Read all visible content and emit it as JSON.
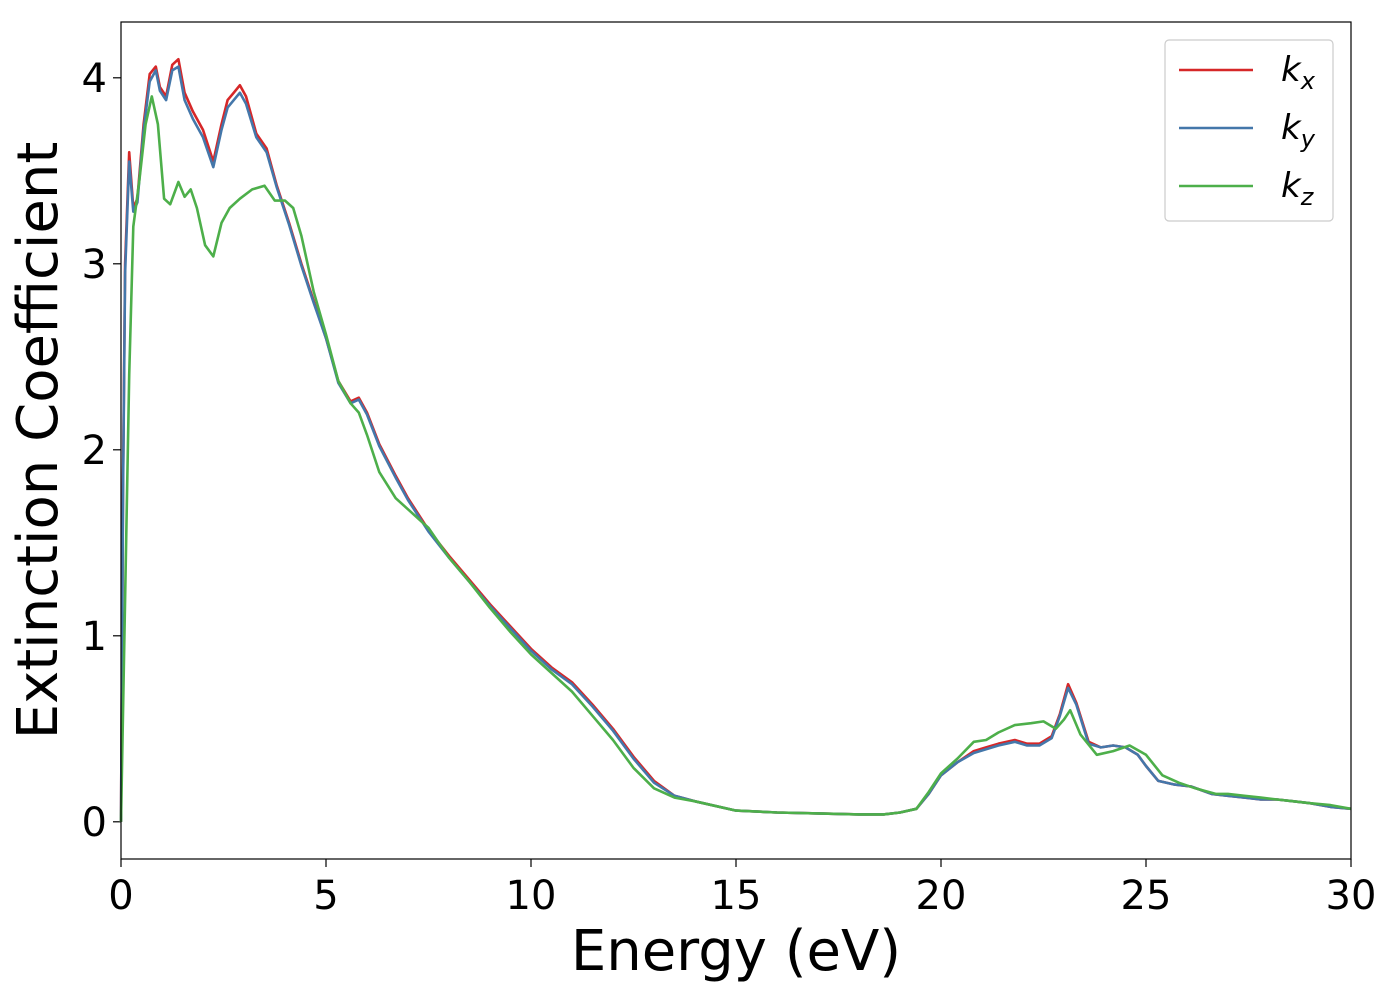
{
  "chart_data": {
    "type": "line",
    "title": "",
    "xlabel": "Energy (eV)",
    "ylabel": "Extinction Coefficient",
    "xlim": [
      0,
      30
    ],
    "ylim": [
      -0.2,
      4.3
    ],
    "xticks": [
      0,
      5,
      10,
      15,
      20,
      25,
      30
    ],
    "xtick_labels": [
      "0",
      "5",
      "10",
      "15",
      "20",
      "25",
      "30"
    ],
    "yticks": [
      0,
      1,
      2,
      3,
      4
    ],
    "ytick_labels": [
      "0",
      "1",
      "2",
      "3",
      "4"
    ],
    "grid": false,
    "legend_position": "top-right",
    "series": [
      {
        "name": "k_x",
        "legend_base": "k",
        "legend_sub": "x",
        "color": "#d62728",
        "x": [
          0,
          0.05,
          0.1,
          0.2,
          0.3,
          0.4,
          0.55,
          0.7,
          0.85,
          0.95,
          1.1,
          1.25,
          1.4,
          1.55,
          1.75,
          2.0,
          2.25,
          2.45,
          2.6,
          2.75,
          2.9,
          3.05,
          3.3,
          3.55,
          3.8,
          4.1,
          4.4,
          4.7,
          5.0,
          5.3,
          5.6,
          5.8,
          6.0,
          6.3,
          6.7,
          7.0,
          7.5,
          8.0,
          8.5,
          9.0,
          9.5,
          10.0,
          10.5,
          11.0,
          11.5,
          12.0,
          12.5,
          13.0,
          13.5,
          14.0,
          15.0,
          16.0,
          17.0,
          18.0,
          18.6,
          19.0,
          19.4,
          19.7,
          20.0,
          20.4,
          20.8,
          21.1,
          21.4,
          21.8,
          22.1,
          22.4,
          22.7,
          22.9,
          23.1,
          23.3,
          23.6,
          23.9,
          24.2,
          24.5,
          24.8,
          25.0,
          25.3,
          25.7,
          26.1,
          26.6,
          27.0,
          27.4,
          27.8,
          28.2,
          28.6,
          29.0,
          29.5,
          30.0
        ],
        "values": [
          0.0,
          1.8,
          3.0,
          3.6,
          3.3,
          3.35,
          3.75,
          4.02,
          4.06,
          3.95,
          3.9,
          4.07,
          4.1,
          3.92,
          3.82,
          3.72,
          3.55,
          3.75,
          3.88,
          3.92,
          3.96,
          3.9,
          3.7,
          3.62,
          3.42,
          3.22,
          3.0,
          2.8,
          2.6,
          2.37,
          2.26,
          2.28,
          2.2,
          2.03,
          1.86,
          1.74,
          1.57,
          1.43,
          1.3,
          1.17,
          1.05,
          0.93,
          0.83,
          0.75,
          0.63,
          0.5,
          0.35,
          0.22,
          0.14,
          0.11,
          0.06,
          0.05,
          0.045,
          0.04,
          0.04,
          0.05,
          0.07,
          0.15,
          0.25,
          0.32,
          0.38,
          0.4,
          0.42,
          0.44,
          0.42,
          0.42,
          0.46,
          0.58,
          0.74,
          0.64,
          0.43,
          0.4,
          0.41,
          0.4,
          0.36,
          0.3,
          0.22,
          0.2,
          0.19,
          0.15,
          0.14,
          0.13,
          0.12,
          0.12,
          0.11,
          0.1,
          0.08,
          0.07
        ]
      },
      {
        "name": "k_y",
        "legend_base": "k",
        "legend_sub": "y",
        "color": "#4477aa",
        "x": [
          0,
          0.05,
          0.1,
          0.2,
          0.3,
          0.4,
          0.55,
          0.7,
          0.85,
          0.95,
          1.1,
          1.25,
          1.4,
          1.55,
          1.75,
          2.0,
          2.25,
          2.45,
          2.6,
          2.75,
          2.9,
          3.05,
          3.3,
          3.55,
          3.8,
          4.1,
          4.4,
          4.7,
          5.0,
          5.3,
          5.6,
          5.8,
          6.0,
          6.3,
          6.7,
          7.0,
          7.5,
          8.0,
          8.5,
          9.0,
          9.5,
          10.0,
          10.5,
          11.0,
          11.5,
          12.0,
          12.5,
          13.0,
          13.5,
          14.0,
          15.0,
          16.0,
          17.0,
          18.0,
          18.6,
          19.0,
          19.4,
          19.7,
          20.0,
          20.4,
          20.8,
          21.1,
          21.4,
          21.8,
          22.1,
          22.4,
          22.7,
          22.9,
          23.1,
          23.3,
          23.6,
          23.9,
          24.2,
          24.5,
          24.8,
          25.0,
          25.3,
          25.7,
          26.1,
          26.6,
          27.0,
          27.4,
          27.8,
          28.2,
          28.6,
          29.0,
          29.5,
          30.0
        ],
        "values": [
          0.0,
          1.75,
          2.95,
          3.55,
          3.28,
          3.33,
          3.72,
          3.98,
          4.04,
          3.93,
          3.88,
          4.04,
          4.06,
          3.88,
          3.78,
          3.68,
          3.52,
          3.72,
          3.84,
          3.88,
          3.92,
          3.86,
          3.68,
          3.6,
          3.41,
          3.21,
          2.99,
          2.79,
          2.6,
          2.36,
          2.25,
          2.27,
          2.19,
          2.02,
          1.85,
          1.73,
          1.56,
          1.42,
          1.29,
          1.16,
          1.04,
          0.92,
          0.82,
          0.74,
          0.62,
          0.49,
          0.34,
          0.21,
          0.14,
          0.11,
          0.06,
          0.05,
          0.045,
          0.04,
          0.04,
          0.05,
          0.07,
          0.15,
          0.25,
          0.32,
          0.37,
          0.39,
          0.41,
          0.43,
          0.41,
          0.41,
          0.45,
          0.57,
          0.72,
          0.63,
          0.42,
          0.4,
          0.41,
          0.4,
          0.36,
          0.3,
          0.22,
          0.2,
          0.19,
          0.15,
          0.14,
          0.13,
          0.12,
          0.12,
          0.11,
          0.1,
          0.08,
          0.07
        ]
      },
      {
        "name": "k_z",
        "legend_base": "k",
        "legend_sub": "z",
        "color": "#4daf4a",
        "x": [
          0,
          0.1,
          0.2,
          0.3,
          0.45,
          0.6,
          0.75,
          0.9,
          1.05,
          1.2,
          1.4,
          1.55,
          1.7,
          1.85,
          2.05,
          2.25,
          2.45,
          2.65,
          2.9,
          3.2,
          3.5,
          3.75,
          4.0,
          4.2,
          4.4,
          4.7,
          5.0,
          5.3,
          5.6,
          5.8,
          6.0,
          6.3,
          6.7,
          7.0,
          7.5,
          8.0,
          8.5,
          9.0,
          9.5,
          10.0,
          10.5,
          11.0,
          11.5,
          12.0,
          12.5,
          13.0,
          13.5,
          14.0,
          15.0,
          16.0,
          17.0,
          18.0,
          18.6,
          19.0,
          19.4,
          19.7,
          20.0,
          20.4,
          20.8,
          21.1,
          21.4,
          21.8,
          22.2,
          22.5,
          22.8,
          23.0,
          23.15,
          23.4,
          23.8,
          24.2,
          24.6,
          25.0,
          25.4,
          25.8,
          26.2,
          26.7,
          27.0,
          27.4,
          27.8,
          28.2,
          28.6,
          29.0,
          29.5,
          30.0
        ],
        "values": [
          0.0,
          1.2,
          2.4,
          3.2,
          3.45,
          3.75,
          3.9,
          3.75,
          3.35,
          3.32,
          3.44,
          3.36,
          3.4,
          3.3,
          3.1,
          3.04,
          3.22,
          3.3,
          3.35,
          3.4,
          3.42,
          3.34,
          3.34,
          3.3,
          3.15,
          2.85,
          2.62,
          2.37,
          2.25,
          2.2,
          2.08,
          1.88,
          1.74,
          1.68,
          1.58,
          1.42,
          1.29,
          1.15,
          1.02,
          0.9,
          0.8,
          0.7,
          0.57,
          0.44,
          0.29,
          0.18,
          0.13,
          0.11,
          0.06,
          0.05,
          0.045,
          0.04,
          0.04,
          0.05,
          0.07,
          0.16,
          0.26,
          0.34,
          0.43,
          0.44,
          0.48,
          0.52,
          0.53,
          0.54,
          0.5,
          0.55,
          0.6,
          0.47,
          0.36,
          0.38,
          0.41,
          0.36,
          0.25,
          0.21,
          0.18,
          0.15,
          0.15,
          0.14,
          0.13,
          0.12,
          0.11,
          0.1,
          0.09,
          0.07
        ]
      }
    ]
  }
}
